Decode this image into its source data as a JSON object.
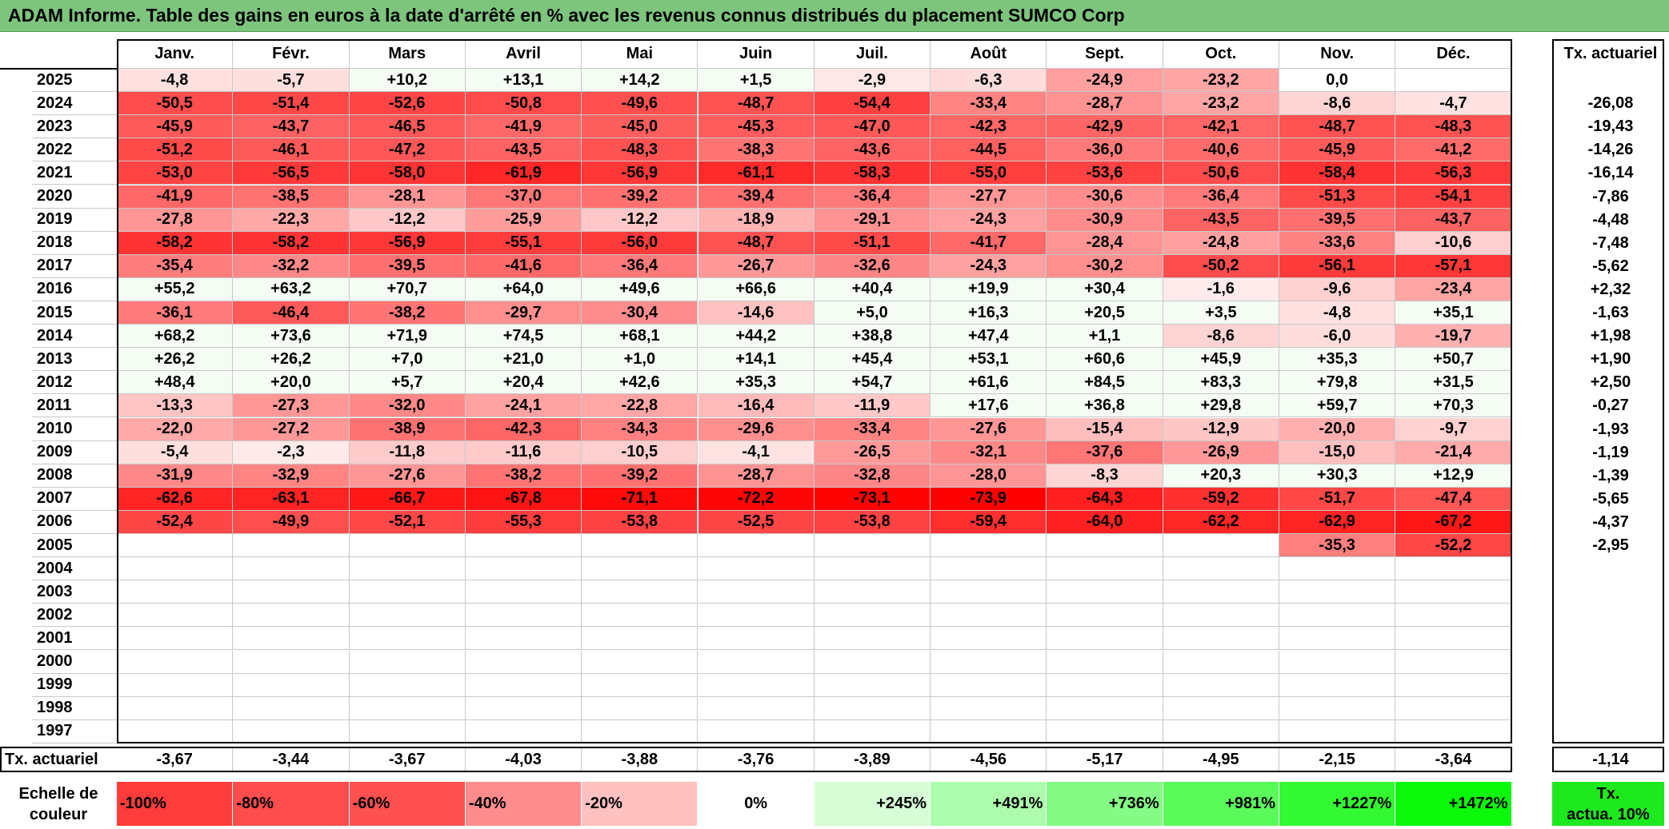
{
  "title": "ADAM Informe. Table des gains en euros à la date d'arrêté en % avec les revenus connus distribués du placement SUMCO Corp",
  "months": [
    "Janv.",
    "Févr.",
    "Mars",
    "Avril",
    "Mai",
    "Juin",
    "Juil.",
    "Août",
    "Sept.",
    "Oct.",
    "Nov.",
    "Déc."
  ],
  "actuariel_header": "Tx. actuariel",
  "rows": [
    {
      "year": "2025",
      "values": [
        "-4,8",
        "-5,7",
        "+10,2",
        "+13,1",
        "+14,2",
        "+1,5",
        "-2,9",
        "-6,3",
        "-24,9",
        "-23,2",
        "0,0",
        ""
      ],
      "actuariel": ""
    },
    {
      "year": "2024",
      "values": [
        "-50,5",
        "-51,4",
        "-52,6",
        "-50,8",
        "-49,6",
        "-48,7",
        "-54,4",
        "-33,4",
        "-28,7",
        "-23,2",
        "-8,6",
        "-4,7"
      ],
      "actuariel": "-26,08"
    },
    {
      "year": "2023",
      "values": [
        "-45,9",
        "-43,7",
        "-46,5",
        "-41,9",
        "-45,0",
        "-45,3",
        "-47,0",
        "-42,3",
        "-42,9",
        "-42,1",
        "-48,7",
        "-48,3"
      ],
      "actuariel": "-19,43"
    },
    {
      "year": "2022",
      "values": [
        "-51,2",
        "-46,1",
        "-47,2",
        "-43,5",
        "-48,3",
        "-38,3",
        "-43,6",
        "-44,5",
        "-36,0",
        "-40,6",
        "-45,9",
        "-41,2"
      ],
      "actuariel": "-14,26"
    },
    {
      "year": "2021",
      "values": [
        "-53,0",
        "-56,5",
        "-58,0",
        "-61,9",
        "-56,9",
        "-61,1",
        "-58,3",
        "-55,0",
        "-53,6",
        "-50,6",
        "-58,4",
        "-56,3"
      ],
      "actuariel": "-16,14"
    },
    {
      "year": "2020",
      "values": [
        "-41,9",
        "-38,5",
        "-28,1",
        "-37,0",
        "-39,2",
        "-39,4",
        "-36,4",
        "-27,7",
        "-30,6",
        "-36,4",
        "-51,3",
        "-54,1"
      ],
      "actuariel": "-7,86"
    },
    {
      "year": "2019",
      "values": [
        "-27,8",
        "-22,3",
        "-12,2",
        "-25,9",
        "-12,2",
        "-18,9",
        "-29,1",
        "-24,3",
        "-30,9",
        "-43,5",
        "-39,5",
        "-43,7"
      ],
      "actuariel": "-4,48"
    },
    {
      "year": "2018",
      "values": [
        "-58,2",
        "-58,2",
        "-56,9",
        "-55,1",
        "-56,0",
        "-48,7",
        "-51,1",
        "-41,7",
        "-28,4",
        "-24,8",
        "-33,6",
        "-10,6"
      ],
      "actuariel": "-7,48"
    },
    {
      "year": "2017",
      "values": [
        "-35,4",
        "-32,2",
        "-39,5",
        "-41,6",
        "-36,4",
        "-26,7",
        "-32,6",
        "-24,3",
        "-30,2",
        "-50,2",
        "-56,1",
        "-57,1"
      ],
      "actuariel": "-5,62"
    },
    {
      "year": "2016",
      "values": [
        "+55,2",
        "+63,2",
        "+70,7",
        "+64,0",
        "+49,6",
        "+66,6",
        "+40,4",
        "+19,9",
        "+30,4",
        "-1,6",
        "-9,6",
        "-23,4"
      ],
      "actuariel": "+2,32"
    },
    {
      "year": "2015",
      "values": [
        "-36,1",
        "-46,4",
        "-38,2",
        "-29,7",
        "-30,4",
        "-14,6",
        "+5,0",
        "+16,3",
        "+20,5",
        "+3,5",
        "-4,8",
        "+35,1"
      ],
      "actuariel": "-1,63"
    },
    {
      "year": "2014",
      "values": [
        "+68,2",
        "+73,6",
        "+71,9",
        "+74,5",
        "+68,1",
        "+44,2",
        "+38,8",
        "+47,4",
        "+1,1",
        "-8,6",
        "-6,0",
        "-19,7"
      ],
      "actuariel": "+1,98"
    },
    {
      "year": "2013",
      "values": [
        "+26,2",
        "+26,2",
        "+7,0",
        "+21,0",
        "+1,0",
        "+14,1",
        "+45,4",
        "+53,1",
        "+60,6",
        "+45,9",
        "+35,3",
        "+50,7"
      ],
      "actuariel": "+1,90"
    },
    {
      "year": "2012",
      "values": [
        "+48,4",
        "+20,0",
        "+5,7",
        "+20,4",
        "+42,6",
        "+35,3",
        "+54,7",
        "+61,6",
        "+84,5",
        "+83,3",
        "+79,8",
        "+31,5"
      ],
      "actuariel": "+2,50"
    },
    {
      "year": "2011",
      "values": [
        "-13,3",
        "-27,3",
        "-32,0",
        "-24,1",
        "-22,8",
        "-16,4",
        "-11,9",
        "+17,6",
        "+36,8",
        "+29,8",
        "+59,7",
        "+70,3"
      ],
      "actuariel": "-0,27"
    },
    {
      "year": "2010",
      "values": [
        "-22,0",
        "-27,2",
        "-38,9",
        "-42,3",
        "-34,3",
        "-29,6",
        "-33,4",
        "-27,6",
        "-15,4",
        "-12,9",
        "-20,0",
        "-9,7"
      ],
      "actuariel": "-1,93"
    },
    {
      "year": "2009",
      "values": [
        "-5,4",
        "-2,3",
        "-11,8",
        "-11,6",
        "-10,5",
        "-4,1",
        "-26,5",
        "-32,1",
        "-37,6",
        "-26,9",
        "-15,0",
        "-21,4"
      ],
      "actuariel": "-1,19"
    },
    {
      "year": "2008",
      "values": [
        "-31,9",
        "-32,9",
        "-27,6",
        "-38,2",
        "-39,2",
        "-28,7",
        "-32,8",
        "-28,0",
        "-8,3",
        "+20,3",
        "+30,3",
        "+12,9"
      ],
      "actuariel": "-1,39"
    },
    {
      "year": "2007",
      "values": [
        "-62,6",
        "-63,1",
        "-66,7",
        "-67,8",
        "-71,1",
        "-72,2",
        "-73,1",
        "-73,9",
        "-64,3",
        "-59,2",
        "-51,7",
        "-47,4"
      ],
      "actuariel": "-5,65"
    },
    {
      "year": "2006",
      "values": [
        "-52,4",
        "-49,9",
        "-52,1",
        "-55,3",
        "-53,8",
        "-52,5",
        "-53,8",
        "-59,4",
        "-64,0",
        "-62,2",
        "-62,9",
        "-67,2"
      ],
      "actuariel": "-4,37"
    },
    {
      "year": "2005",
      "values": [
        "",
        "",
        "",
        "",
        "",
        "",
        "",
        "",
        "",
        "",
        "-35,3",
        "-52,2"
      ],
      "actuariel": "-2,95"
    },
    {
      "year": "2004",
      "values": [
        "",
        "",
        "",
        "",
        "",
        "",
        "",
        "",
        "",
        "",
        "",
        ""
      ],
      "actuariel": ""
    },
    {
      "year": "2003",
      "values": [
        "",
        "",
        "",
        "",
        "",
        "",
        "",
        "",
        "",
        "",
        "",
        ""
      ],
      "actuariel": ""
    },
    {
      "year": "2002",
      "values": [
        "",
        "",
        "",
        "",
        "",
        "",
        "",
        "",
        "",
        "",
        "",
        ""
      ],
      "actuariel": ""
    },
    {
      "year": "2001",
      "values": [
        "",
        "",
        "",
        "",
        "",
        "",
        "",
        "",
        "",
        "",
        "",
        ""
      ],
      "actuariel": ""
    },
    {
      "year": "2000",
      "values": [
        "",
        "",
        "",
        "",
        "",
        "",
        "",
        "",
        "",
        "",
        "",
        ""
      ],
      "actuariel": ""
    },
    {
      "year": "1999",
      "values": [
        "",
        "",
        "",
        "",
        "",
        "",
        "",
        "",
        "",
        "",
        "",
        ""
      ],
      "actuariel": ""
    },
    {
      "year": "1998",
      "values": [
        "",
        "",
        "",
        "",
        "",
        "",
        "",
        "",
        "",
        "",
        "",
        ""
      ],
      "actuariel": ""
    },
    {
      "year": "1997",
      "values": [
        "",
        "",
        "",
        "",
        "",
        "",
        "",
        "",
        "",
        "",
        "",
        ""
      ],
      "actuariel": ""
    }
  ],
  "footer": {
    "label": "Tx. actuariel",
    "values": [
      "-3,67",
      "-3,44",
      "-3,67",
      "-4,03",
      "-3,88",
      "-3,76",
      "-3,89",
      "-4,56",
      "-5,17",
      "-4,95",
      "-2,15",
      "-3,64"
    ],
    "total": "-1,14"
  },
  "scale": {
    "label_line1": "Echelle de",
    "label_line2": "couleur",
    "items": [
      {
        "label": "-100%",
        "color": "#ff3c3c",
        "align": "left"
      },
      {
        "label": "-80%",
        "color": "#ff4c4c",
        "align": "left"
      },
      {
        "label": "-60%",
        "color": "#ff5050",
        "align": "left"
      },
      {
        "label": "-40%",
        "color": "#ff8c8c",
        "align": "left"
      },
      {
        "label": "-20%",
        "color": "#ffc0c0",
        "align": "left"
      },
      {
        "label": "0%",
        "color": "#ffffff",
        "align": "center"
      },
      {
        "label": "+245%",
        "color": "#d6fdd6",
        "align": "right"
      },
      {
        "label": "+491%",
        "color": "#adfcad",
        "align": "right"
      },
      {
        "label": "+736%",
        "color": "#84fb84",
        "align": "right"
      },
      {
        "label": "+981%",
        "color": "#5bfa5b",
        "align": "right"
      },
      {
        "label": "+1227%",
        "color": "#32f932",
        "align": "right"
      },
      {
        "label": "+1472%",
        "color": "#0bf80b",
        "align": "right"
      }
    ],
    "actua_line1": "Tx.",
    "actua_line2": "actua. 10%",
    "actua_color": "#1ee81e"
  }
}
